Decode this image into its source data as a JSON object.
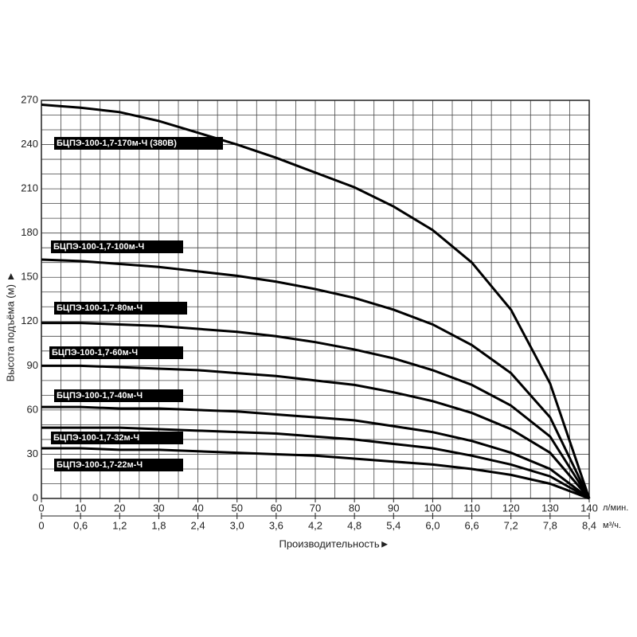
{
  "chart_data": {
    "type": "line",
    "y_label": "Высота подъёма (м) ►",
    "x_label": "Производительность►",
    "x_unit": "л/мин.",
    "x2_unit": "м³/ч.",
    "x": [
      0,
      10,
      20,
      30,
      40,
      50,
      60,
      70,
      80,
      90,
      100,
      110,
      120,
      130,
      140
    ],
    "series": [
      {
        "name": "БЦПЭ-100-1,7-170м-Ч (380В)",
        "color": "#000000",
        "values": [
          267,
          265,
          262,
          256,
          248,
          240,
          231,
          221,
          211,
          198,
          182,
          160,
          128,
          78,
          0
        ]
      },
      {
        "name": "БЦПЭ-100-1,7-100м-Ч",
        "color": "#000000",
        "values": [
          162,
          161,
          159,
          157,
          154,
          151,
          147,
          142,
          136,
          128,
          118,
          104,
          85,
          55,
          0
        ]
      },
      {
        "name": "БЦПЭ-100-1,7-80м-Ч",
        "color": "#000000",
        "values": [
          119,
          119,
          118,
          117,
          115,
          113,
          110,
          106,
          101,
          95,
          87,
          77,
          63,
          42,
          0
        ]
      },
      {
        "name": "БЦПЭ-100-1,7-60м-Ч",
        "color": "#000000",
        "values": [
          90,
          90,
          89,
          88,
          87,
          85,
          83,
          80,
          77,
          72,
          66,
          58,
          47,
          31,
          0
        ]
      },
      {
        "name": "БЦПЭ-100-1,7-40м-Ч",
        "color": "#000000",
        "values": [
          62,
          62,
          61,
          61,
          60,
          59,
          57,
          55,
          53,
          49,
          45,
          39,
          31,
          20,
          0
        ]
      },
      {
        "name": "БЦПЭ-100-1,7-32м-Ч",
        "color": "#000000",
        "values": [
          48,
          48,
          48,
          47,
          46,
          45,
          44,
          42,
          40,
          37,
          34,
          29,
          23,
          15,
          0
        ]
      },
      {
        "name": "БЦПЭ-100-1,7-22м-Ч",
        "color": "#000000",
        "values": [
          34,
          34,
          33,
          33,
          32,
          31,
          30,
          29,
          27,
          25,
          23,
          20,
          16,
          10,
          0
        ]
      }
    ],
    "xlim": [
      0,
      140
    ],
    "ylim": [
      0,
      270
    ],
    "xticks": [
      0,
      10,
      20,
      30,
      40,
      50,
      60,
      70,
      80,
      90,
      100,
      110,
      120,
      130,
      140
    ],
    "yticks": [
      0,
      30,
      60,
      90,
      120,
      150,
      180,
      210,
      240,
      270
    ],
    "x2lim": [
      0,
      8.4
    ],
    "x2ticks": [
      0,
      {
        "value": 0.6,
        "label": "0,6"
      },
      {
        "value": 1.2,
        "label": "1,2"
      },
      {
        "value": 1.8,
        "label": "1,8"
      },
      {
        "value": 2.4,
        "label": "2,4"
      },
      {
        "value": 3,
        "label": "3,0"
      },
      {
        "value": 3.6,
        "label": "3,6"
      },
      {
        "value": 4.2,
        "label": "4,2"
      },
      {
        "value": 4.8,
        "label": "4,8"
      },
      {
        "value": 5.4,
        "label": "5,4"
      },
      {
        "value": 6,
        "label": "6,0"
      },
      {
        "value": 6.6,
        "label": "6,6"
      },
      {
        "value": 7.2,
        "label": "7,2"
      },
      {
        "value": 7.8,
        "label": "7,8"
      },
      {
        "value": 8.4,
        "label": "8,4"
      }
    ],
    "xgrid": [
      0,
      5,
      10,
      15,
      20,
      25,
      30,
      35,
      40,
      45,
      50,
      55,
      60,
      65,
      70,
      75,
      80,
      85,
      90,
      95,
      100,
      105,
      110,
      115,
      120,
      125,
      130,
      135,
      140
    ],
    "ygrid": [
      0,
      10,
      20,
      30,
      40,
      50,
      60,
      70,
      80,
      90,
      100,
      110,
      120,
      130,
      140,
      150,
      160,
      170,
      180,
      190,
      200,
      210,
      220,
      230,
      240,
      250,
      260,
      270
    ]
  }
}
